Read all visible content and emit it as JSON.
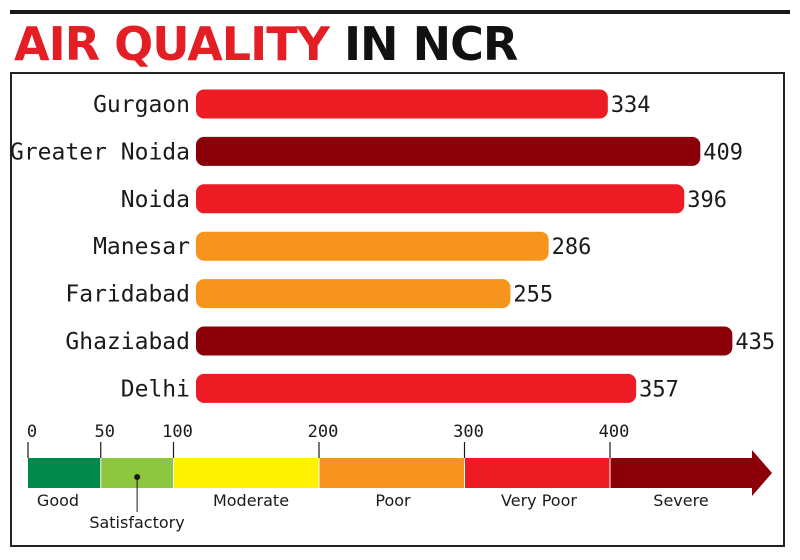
{
  "title": {
    "part1": "AIR QUALITY",
    "part2": "IN NCR"
  },
  "chart_data": {
    "type": "bar",
    "orientation": "horizontal",
    "categories": [
      "Gurgaon",
      "Greater Noida",
      "Noida",
      "Manesar",
      "Faridabad",
      "Ghaziabad",
      "Delhi"
    ],
    "values": [
      334,
      409,
      396,
      286,
      255,
      435,
      357
    ],
    "colors": [
      "#ed1c24",
      "#8b0008",
      "#ed1c24",
      "#f7941d",
      "#f7941d",
      "#8b0008",
      "#ed1c24"
    ],
    "title": "AIR QUALITY IN NCR",
    "xlabel": "",
    "ylabel": "",
    "xlim": [
      0,
      450
    ]
  },
  "scale": {
    "ticks": [
      "0",
      "50",
      "100",
      "200",
      "300",
      "400"
    ],
    "tick_values": [
      0,
      50,
      100,
      200,
      300,
      400
    ],
    "bands": [
      {
        "label": "Good",
        "from": 0,
        "to": 50,
        "color": "#00894a"
      },
      {
        "label": "Satisfactory",
        "from": 50,
        "to": 100,
        "color": "#8dc63f"
      },
      {
        "label": "Moderate",
        "from": 100,
        "to": 200,
        "color": "#fff200"
      },
      {
        "label": "Poor",
        "from": 200,
        "to": 300,
        "color": "#f7941d"
      },
      {
        "label": "Very Poor",
        "from": 300,
        "to": 400,
        "color": "#ed1c24"
      },
      {
        "label": "Severe",
        "from": 400,
        "to": 500,
        "color": "#8b0008"
      }
    ]
  }
}
